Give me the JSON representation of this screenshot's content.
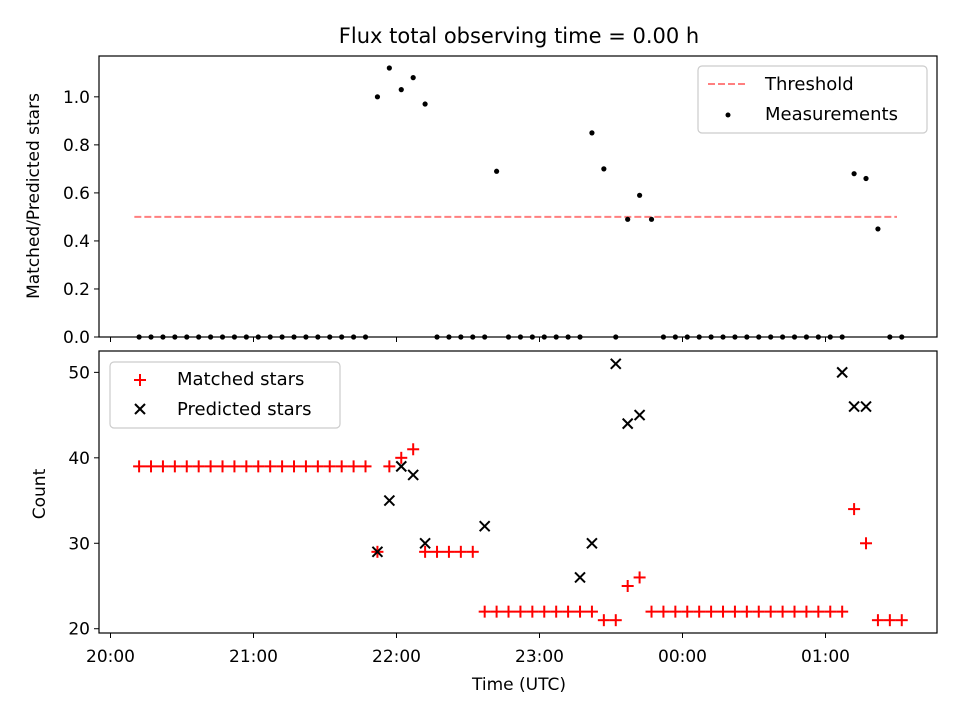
{
  "chart_data": [
    {
      "type": "scatter",
      "title": "Flux total observing time = 0.00 h",
      "xlabel": "",
      "ylabel": "Matched/Predicted stars",
      "ylim": [
        0,
        1.17
      ],
      "yticks": [
        "0.0",
        "0.2",
        "0.4",
        "0.6",
        "0.8",
        "1.0"
      ],
      "threshold": {
        "name": "Threshold",
        "value": 0.5,
        "x_range": [
          "20:10",
          "01:30"
        ],
        "color": "#ff7f7f",
        "style": "dashed"
      },
      "series": [
        {
          "name": "Measurements",
          "color": "#000000",
          "x": [
            "20:12",
            "20:17",
            "20:22",
            "20:27",
            "20:32",
            "20:37",
            "20:42",
            "20:47",
            "20:52",
            "20:57",
            "21:02",
            "21:07",
            "21:12",
            "21:17",
            "21:22",
            "21:27",
            "21:32",
            "21:37",
            "21:42",
            "21:47",
            "21:52",
            "21:57",
            "22:02",
            "22:07",
            "22:12",
            "22:17",
            "22:22",
            "22:27",
            "22:32",
            "22:37",
            "22:42",
            "22:47",
            "22:52",
            "22:57",
            "23:02",
            "23:07",
            "23:12",
            "23:17",
            "23:22",
            "23:27",
            "23:32",
            "23:37",
            "23:42",
            "23:47",
            "23:52",
            "23:57",
            "00:02",
            "00:07",
            "00:12",
            "00:17",
            "00:22",
            "00:27",
            "00:32",
            "00:37",
            "00:42",
            "00:47",
            "00:52",
            "00:57",
            "01:02",
            "01:07",
            "01:12",
            "01:17",
            "01:22",
            "01:27",
            "01:32"
          ],
          "y": [
            0,
            0,
            0,
            0,
            0,
            0,
            0,
            0,
            0,
            0,
            0,
            0,
            0,
            0,
            0,
            0,
            0,
            0,
            0,
            0,
            1.0,
            1.12,
            1.03,
            1.08,
            0.97,
            0,
            0,
            0,
            0,
            0,
            0.69,
            0,
            0,
            0,
            0,
            0,
            0,
            0,
            0.85,
            0.7,
            0,
            0.49,
            0.59,
            0.49,
            0,
            0,
            0,
            0,
            0,
            0,
            0,
            0,
            0,
            0,
            0,
            0,
            0,
            0,
            0,
            0,
            0.68,
            0.66,
            0.45,
            0,
            0
          ]
        }
      ]
    },
    {
      "type": "scatter",
      "title": "",
      "xlabel": "Time (UTC)",
      "ylabel": "Count",
      "ylim": [
        19.5,
        52.5
      ],
      "yticks": [
        "20",
        "30",
        "40",
        "50"
      ],
      "xticks": [
        "20:00",
        "21:00",
        "22:00",
        "23:00",
        "00:00",
        "01:00"
      ],
      "legend": "top-left",
      "series": [
        {
          "name": "Matched stars",
          "color": "#ff0000",
          "marker": "plus",
          "x": [
            "20:12",
            "20:17",
            "20:22",
            "20:27",
            "20:32",
            "20:37",
            "20:42",
            "20:47",
            "20:52",
            "20:57",
            "21:02",
            "21:07",
            "21:12",
            "21:17",
            "21:22",
            "21:27",
            "21:32",
            "21:37",
            "21:42",
            "21:47",
            "21:52",
            "21:57",
            "22:02",
            "22:07",
            "22:12",
            "22:17",
            "22:22",
            "22:27",
            "22:32",
            "22:37",
            "22:42",
            "22:47",
            "22:52",
            "22:57",
            "23:02",
            "23:07",
            "23:12",
            "23:17",
            "23:22",
            "23:27",
            "23:32",
            "23:37",
            "23:42",
            "23:47",
            "23:52",
            "23:57",
            "00:02",
            "00:07",
            "00:12",
            "00:17",
            "00:22",
            "00:27",
            "00:32",
            "00:37",
            "00:42",
            "00:47",
            "00:52",
            "00:57",
            "01:02",
            "01:07",
            "01:12",
            "01:17",
            "01:22",
            "01:27",
            "01:32"
          ],
          "y": [
            39,
            39,
            39,
            39,
            39,
            39,
            39,
            39,
            39,
            39,
            39,
            39,
            39,
            39,
            39,
            39,
            39,
            39,
            39,
            39,
            29,
            39,
            40,
            41,
            29,
            29,
            29,
            29,
            29,
            22,
            22,
            22,
            22,
            22,
            22,
            22,
            22,
            22,
            22,
            21,
            21,
            25,
            26,
            22,
            22,
            22,
            22,
            22,
            22,
            22,
            22,
            22,
            22,
            22,
            22,
            22,
            22,
            22,
            22,
            22,
            34,
            30,
            21,
            21,
            21
          ]
        },
        {
          "name": "Predicted stars",
          "color": "#000000",
          "marker": "x",
          "x": [
            "21:52",
            "21:57",
            "22:02",
            "22:07",
            "22:12",
            "22:37",
            "23:17",
            "23:22",
            "23:32",
            "23:37",
            "23:42",
            "01:07",
            "01:12",
            "01:17"
          ],
          "y": [
            29,
            35,
            39,
            38,
            30,
            32,
            26,
            30,
            51,
            44,
            45,
            50,
            46,
            46
          ]
        }
      ]
    }
  ]
}
